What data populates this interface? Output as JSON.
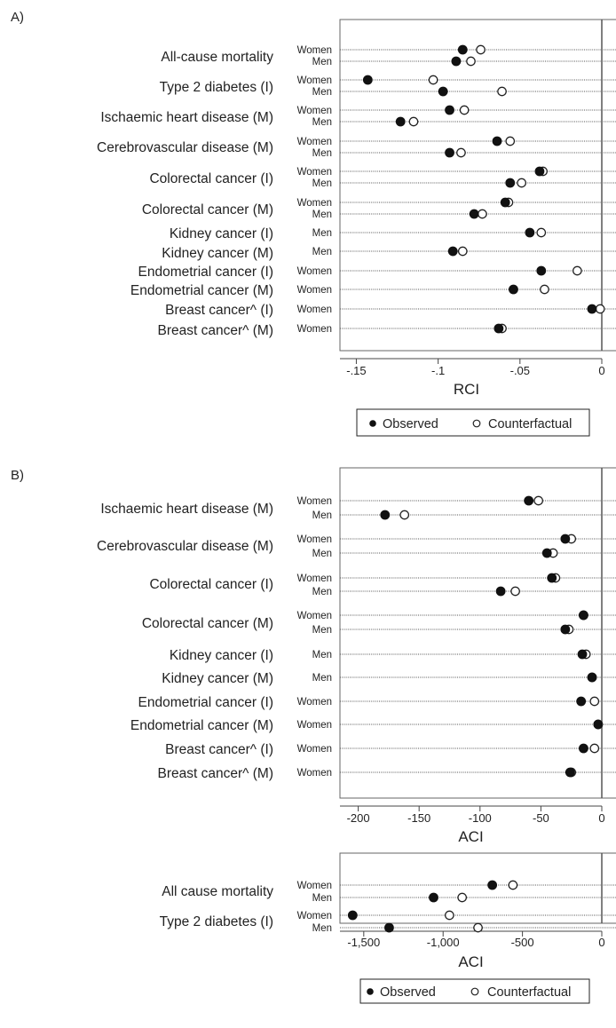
{
  "chart_data": [
    {
      "panel_label": "A)",
      "type": "scatter",
      "xlabel": "RCI",
      "xlim": [
        -0.16,
        0
      ],
      "xticks": [
        -0.15,
        -0.1,
        -0.05,
        0
      ],
      "xtick_labels": [
        "-.15",
        "-.1",
        "-.05",
        "0"
      ],
      "legend": [
        "Observed",
        "Counterfactual"
      ],
      "legend_position": "bottom",
      "series": [
        {
          "name": "Observed"
        },
        {
          "name": "Counterfactual"
        }
      ],
      "groups": [
        {
          "label": "All-cause mortality",
          "rows": [
            {
              "sex": "Women",
              "observed": -0.085,
              "counterfactual": -0.074
            },
            {
              "sex": "Men",
              "observed": -0.089,
              "counterfactual": -0.08
            }
          ]
        },
        {
          "label": "Type 2 diabetes (I)",
          "rows": [
            {
              "sex": "Women",
              "observed": -0.143,
              "counterfactual": -0.103
            },
            {
              "sex": "Men",
              "observed": -0.097,
              "counterfactual": -0.061
            }
          ]
        },
        {
          "label": "Ischaemic heart disease (M)",
          "rows": [
            {
              "sex": "Women",
              "observed": -0.093,
              "counterfactual": -0.084
            },
            {
              "sex": "Men",
              "observed": -0.123,
              "counterfactual": -0.115
            }
          ]
        },
        {
          "label": "Cerebrovascular disease (M)",
          "rows": [
            {
              "sex": "Women",
              "observed": -0.064,
              "counterfactual": -0.056
            },
            {
              "sex": "Men",
              "observed": -0.093,
              "counterfactual": -0.086
            }
          ]
        },
        {
          "label": "Colorectal cancer (I)",
          "rows": [
            {
              "sex": "Women",
              "observed": -0.038,
              "counterfactual": -0.036
            },
            {
              "sex": "Men",
              "observed": -0.056,
              "counterfactual": -0.049
            }
          ]
        },
        {
          "label": "Colorectal cancer (M)",
          "rows": [
            {
              "sex": "Women",
              "observed": -0.059,
              "counterfactual": -0.057
            },
            {
              "sex": "Men",
              "observed": -0.078,
              "counterfactual": -0.073
            }
          ]
        },
        {
          "label": "Kidney cancer (I)",
          "rows": [
            {
              "sex": "Men",
              "observed": -0.044,
              "counterfactual": -0.037
            }
          ]
        },
        {
          "label": "Kidney cancer (M)",
          "rows": [
            {
              "sex": "Men",
              "observed": -0.091,
              "counterfactual": -0.085
            }
          ]
        },
        {
          "label": "Endometrial cancer (I)",
          "rows": [
            {
              "sex": "Women",
              "observed": -0.037,
              "counterfactual": -0.015
            }
          ]
        },
        {
          "label": "Endometrial cancer (M)",
          "rows": [
            {
              "sex": "Women",
              "observed": -0.054,
              "counterfactual": -0.035
            }
          ]
        },
        {
          "label": "Breast cancer^ (I)",
          "rows": [
            {
              "sex": "Women",
              "observed": -0.006,
              "counterfactual": -0.001
            }
          ]
        },
        {
          "label": "Breast cancer^ (M)",
          "rows": [
            {
              "sex": "Women",
              "observed": -0.063,
              "counterfactual": -0.061
            }
          ]
        }
      ]
    },
    {
      "panel_label": "B)",
      "type": "scatter",
      "xlabel": "ACI",
      "xlim": [
        -215,
        0
      ],
      "xticks": [
        -200,
        -150,
        -100,
        -50,
        0
      ],
      "xtick_labels": [
        "-200",
        "-150",
        "-100",
        "-50",
        "0"
      ],
      "series": [
        {
          "name": "Observed"
        },
        {
          "name": "Counterfactual"
        }
      ],
      "groups": [
        {
          "label": "Ischaemic heart disease (M)",
          "rows": [
            {
              "sex": "Women",
              "observed": -60,
              "counterfactual": -52
            },
            {
              "sex": "Men",
              "observed": -178,
              "counterfactual": -162
            }
          ]
        },
        {
          "label": "Cerebrovascular disease (M)",
          "rows": [
            {
              "sex": "Women",
              "observed": -30,
              "counterfactual": -25
            },
            {
              "sex": "Men",
              "observed": -45,
              "counterfactual": -40
            }
          ]
        },
        {
          "label": "Colorectal cancer (I)",
          "rows": [
            {
              "sex": "Women",
              "observed": -41,
              "counterfactual": -38
            },
            {
              "sex": "Men",
              "observed": -83,
              "counterfactual": -71
            }
          ]
        },
        {
          "label": "Colorectal cancer (M)",
          "rows": [
            {
              "sex": "Women",
              "observed": -15,
              "counterfactual": -15
            },
            {
              "sex": "Men",
              "observed": -30,
              "counterfactual": -27
            }
          ]
        },
        {
          "label": "Kidney cancer (I)",
          "rows": [
            {
              "sex": "Men",
              "observed": -16,
              "counterfactual": -13
            }
          ]
        },
        {
          "label": "Kidney cancer (M)",
          "rows": [
            {
              "sex": "Men",
              "observed": -8,
              "counterfactual": -8
            }
          ]
        },
        {
          "label": "Endometrial cancer (I)",
          "rows": [
            {
              "sex": "Women",
              "observed": -17,
              "counterfactual": -6
            }
          ]
        },
        {
          "label": "Endometrial cancer (M)",
          "rows": [
            {
              "sex": "Women",
              "observed": -3,
              "counterfactual": -3
            }
          ]
        },
        {
          "label": "Breast cancer^ (I)",
          "rows": [
            {
              "sex": "Women",
              "observed": -15,
              "counterfactual": -6
            }
          ]
        },
        {
          "label": "Breast cancer^ (M)",
          "rows": [
            {
              "sex": "Women",
              "observed": -26,
              "counterfactual": -25
            }
          ]
        }
      ]
    },
    {
      "type": "scatter",
      "xlabel": "ACI",
      "xlim": [
        -1650,
        0
      ],
      "xticks": [
        -1500,
        -1000,
        -500,
        0
      ],
      "xtick_labels": [
        "-1,500",
        "-1,000",
        "-500",
        "0"
      ],
      "legend": [
        "Observed",
        "Counterfactual"
      ],
      "legend_position": "bottom",
      "series": [
        {
          "name": "Observed"
        },
        {
          "name": "Counterfactual"
        }
      ],
      "groups": [
        {
          "label": "All cause mortality",
          "rows": [
            {
              "sex": "Women",
              "observed": -690,
              "counterfactual": -560
            },
            {
              "sex": "Men",
              "observed": -1060,
              "counterfactual": -880
            }
          ]
        },
        {
          "label": "Type 2 diabetes (I)",
          "rows": [
            {
              "sex": "Women",
              "observed": -1570,
              "counterfactual": -960
            },
            {
              "sex": "Men",
              "observed": -1340,
              "counterfactual": -780
            }
          ]
        }
      ]
    }
  ]
}
